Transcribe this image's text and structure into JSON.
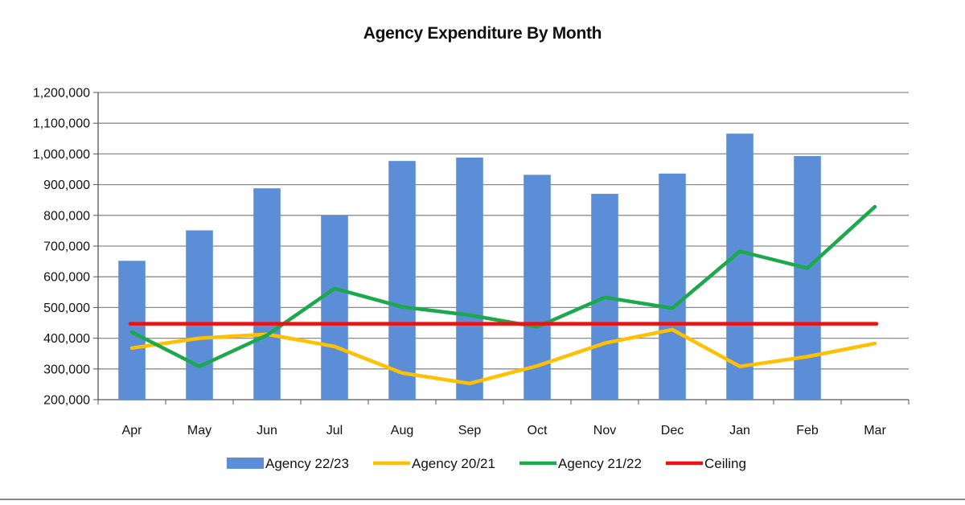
{
  "chart_data": {
    "type": "bar",
    "title": "Agency Expenditure By Month",
    "xlabel": "",
    "ylabel": "",
    "ylim": [
      200000,
      1200000
    ],
    "ytick_step": 100000,
    "yticks": [
      "200,000",
      "300,000",
      "400,000",
      "500,000",
      "600,000",
      "700,000",
      "800,000",
      "900,000",
      "1,000,000",
      "1,100,000",
      "1,200,000"
    ],
    "grid": true,
    "legend_position": "bottom",
    "categories": [
      "Apr",
      "May",
      "Jun",
      "Jul",
      "Aug",
      "Sep",
      "Oct",
      "Nov",
      "Dec",
      "Jan",
      "Feb",
      "Mar"
    ],
    "series": [
      {
        "name": "Agency 22/23",
        "kind": "bar",
        "color": "#5B8ED6",
        "values": [
          652000,
          751000,
          888000,
          799000,
          977000,
          988000,
          932000,
          870000,
          936000,
          1066000,
          993000,
          null
        ]
      },
      {
        "name": "Agency 20/21",
        "kind": "line",
        "color": "#FFC000",
        "values": [
          368000,
          400000,
          413000,
          373000,
          287000,
          253000,
          310000,
          384000,
          428000,
          308000,
          340000,
          383000
        ]
      },
      {
        "name": "Agency 21/22",
        "kind": "line",
        "color": "#1CA84C",
        "values": [
          420000,
          308000,
          410000,
          562000,
          502000,
          475000,
          437000,
          533000,
          498000,
          683000,
          628000,
          828000
        ]
      },
      {
        "name": "Ceiling",
        "kind": "line",
        "color": "#EE1111",
        "values": [
          447000,
          447000,
          447000,
          447000,
          447000,
          447000,
          447000,
          447000,
          447000,
          447000,
          447000,
          447000
        ]
      }
    ]
  }
}
